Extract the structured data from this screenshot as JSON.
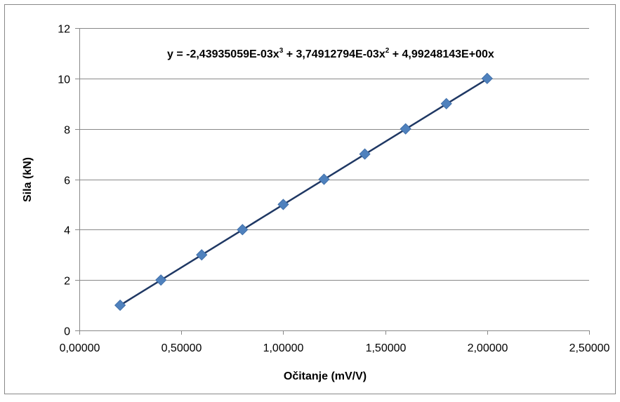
{
  "chart_data": {
    "type": "scatter",
    "xlabel": "Očitanje (mV/V)",
    "ylabel": "Sila (kN)",
    "xlim": [
      0,
      2.5
    ],
    "ylim": [
      0,
      12
    ],
    "x_ticks": [
      "0,00000",
      "0,50000",
      "1,00000",
      "1,50000",
      "2,00000",
      "2,50000"
    ],
    "y_ticks": [
      "0",
      "2",
      "4",
      "6",
      "8",
      "10",
      "12"
    ],
    "x_tick_values": [
      0,
      0.5,
      1.0,
      1.5,
      2.0,
      2.5
    ],
    "y_tick_values": [
      0,
      2,
      4,
      6,
      8,
      10,
      12
    ],
    "grid": "horizontal",
    "series": [
      {
        "marker": "diamond",
        "color": "#4f81bd",
        "x": [
          0.2,
          0.4,
          0.6,
          0.8,
          1.0,
          1.2,
          1.4,
          1.6,
          1.8,
          2.0
        ],
        "y": [
          1,
          2,
          3,
          4,
          5,
          6,
          7,
          8,
          9,
          10
        ]
      }
    ],
    "trendline": {
      "type": "polynomial",
      "color": "#1f3864",
      "coefficients": {
        "a3": -0.00243935059,
        "a2": 0.00374912794,
        "a1": 4.99248143,
        "a0": 0
      },
      "x_range": [
        0.2,
        2.0
      ],
      "equation_parts": [
        "y = -2,43935059E-03x",
        "3",
        " + 3,74912794E-03x",
        "2",
        " + 4,99248143E+00x"
      ]
    },
    "colors": {
      "gridline": "#888888",
      "axis": "#888888",
      "border": "#888888"
    }
  }
}
